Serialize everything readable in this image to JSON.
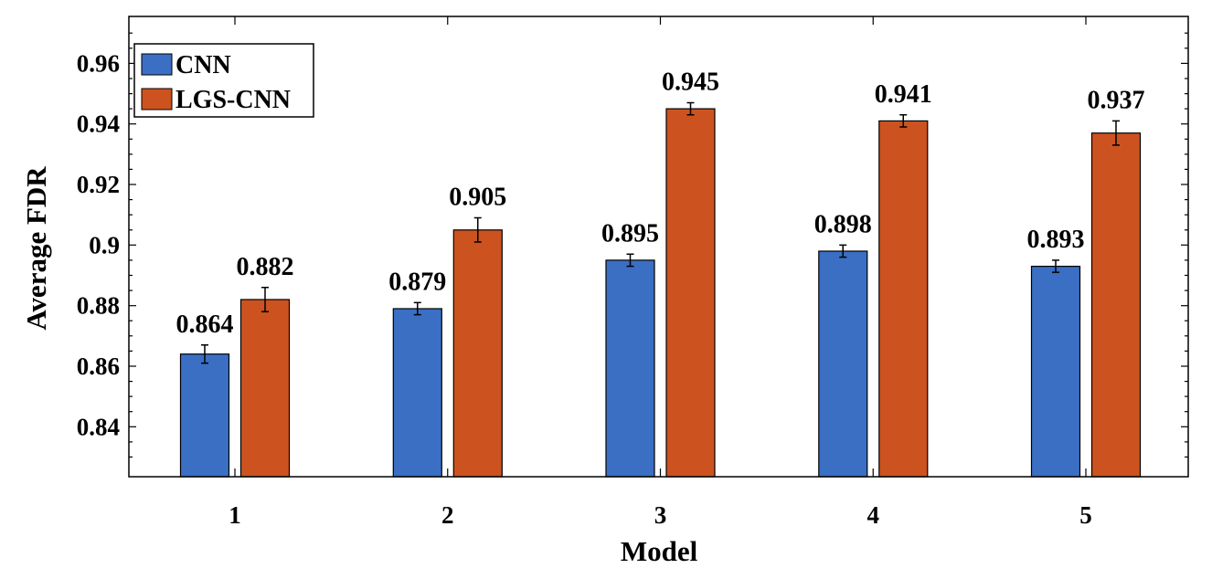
{
  "chart_data": {
    "type": "bar",
    "categories": [
      "1",
      "2",
      "3",
      "4",
      "5"
    ],
    "series": [
      {
        "name": "CNN",
        "values": [
          0.864,
          0.879,
          0.895,
          0.898,
          0.893
        ],
        "errors": [
          0.003,
          0.002,
          0.002,
          0.002,
          0.002
        ],
        "value_labels": [
          "0.864",
          "0.879",
          "0.895",
          "0.898",
          "0.893"
        ]
      },
      {
        "name": "LGS-CNN",
        "values": [
          0.882,
          0.905,
          0.945,
          0.941,
          0.937
        ],
        "errors": [
          0.004,
          0.004,
          0.002,
          0.002,
          0.004
        ],
        "value_labels": [
          "0.882",
          "0.905",
          "0.945",
          "0.941",
          "0.937"
        ]
      }
    ],
    "xlabel": "Model",
    "ylabel": "Average FDR",
    "ylim": [
      0.8235,
      0.9755
    ],
    "yticks": [
      0.84,
      0.86,
      0.88,
      0.9,
      0.92,
      0.94,
      0.96
    ],
    "ytick_labels": [
      "0.84",
      "0.86",
      "0.88",
      "0.9",
      "0.92",
      "0.94",
      "0.96"
    ],
    "xtick_labels": [
      "1",
      "2",
      "3",
      "4",
      "5"
    ],
    "legend_position": "top-left",
    "grid": false,
    "colors": {
      "CNN": "#3a6fc4",
      "LGS-CNN": "#cc531f"
    }
  }
}
